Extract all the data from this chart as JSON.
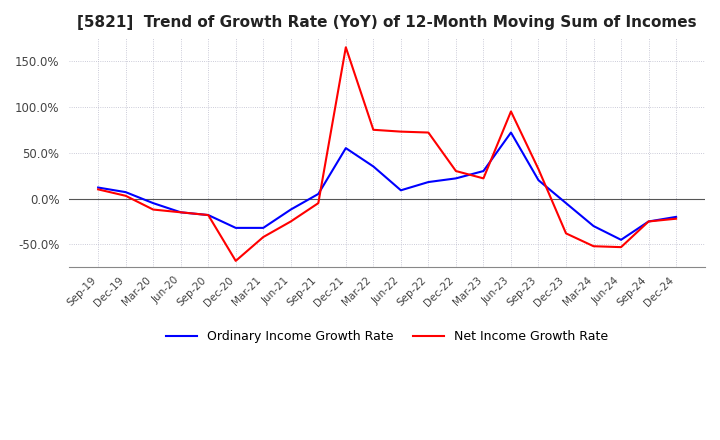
{
  "title": "[5821]  Trend of Growth Rate (YoY) of 12-Month Moving Sum of Incomes",
  "title_fontsize": 11,
  "ylim": [
    -75,
    175
  ],
  "yticks": [
    -50,
    0,
    50,
    100,
    150
  ],
  "ytick_labels": [
    "-50.0%",
    "0.0%",
    "50.0%",
    "100.0%",
    "150.0%"
  ],
  "background_color": "#ffffff",
  "grid_color": "#aaaacc",
  "ordinary_color": "#0000ff",
  "net_color": "#ff0000",
  "legend_ordinary": "Ordinary Income Growth Rate",
  "legend_net": "Net Income Growth Rate",
  "x_labels": [
    "Sep-19",
    "Dec-19",
    "Mar-20",
    "Jun-20",
    "Sep-20",
    "Dec-20",
    "Mar-21",
    "Jun-21",
    "Sep-21",
    "Dec-21",
    "Mar-22",
    "Jun-22",
    "Sep-22",
    "Dec-22",
    "Mar-23",
    "Jun-23",
    "Sep-23",
    "Dec-23",
    "Mar-24",
    "Jun-24",
    "Sep-24",
    "Dec-24"
  ],
  "ordinary_income": [
    12.0,
    7.0,
    -5.0,
    -15.0,
    -18.0,
    -32.0,
    -32.0,
    -12.0,
    5.0,
    55.0,
    35.0,
    9.0,
    18.0,
    22.0,
    30.0,
    72.0,
    20.0,
    -5.0,
    -30.0,
    -45.0,
    -25.0,
    -20.0
  ],
  "net_income": [
    10.0,
    3.0,
    -12.0,
    -15.0,
    -18.0,
    -68.0,
    -42.0,
    -25.0,
    -5.0,
    165.0,
    75.0,
    73.0,
    72.0,
    30.0,
    22.0,
    95.0,
    32.0,
    -38.0,
    -52.0,
    -53.0,
    -25.0,
    -22.0
  ]
}
